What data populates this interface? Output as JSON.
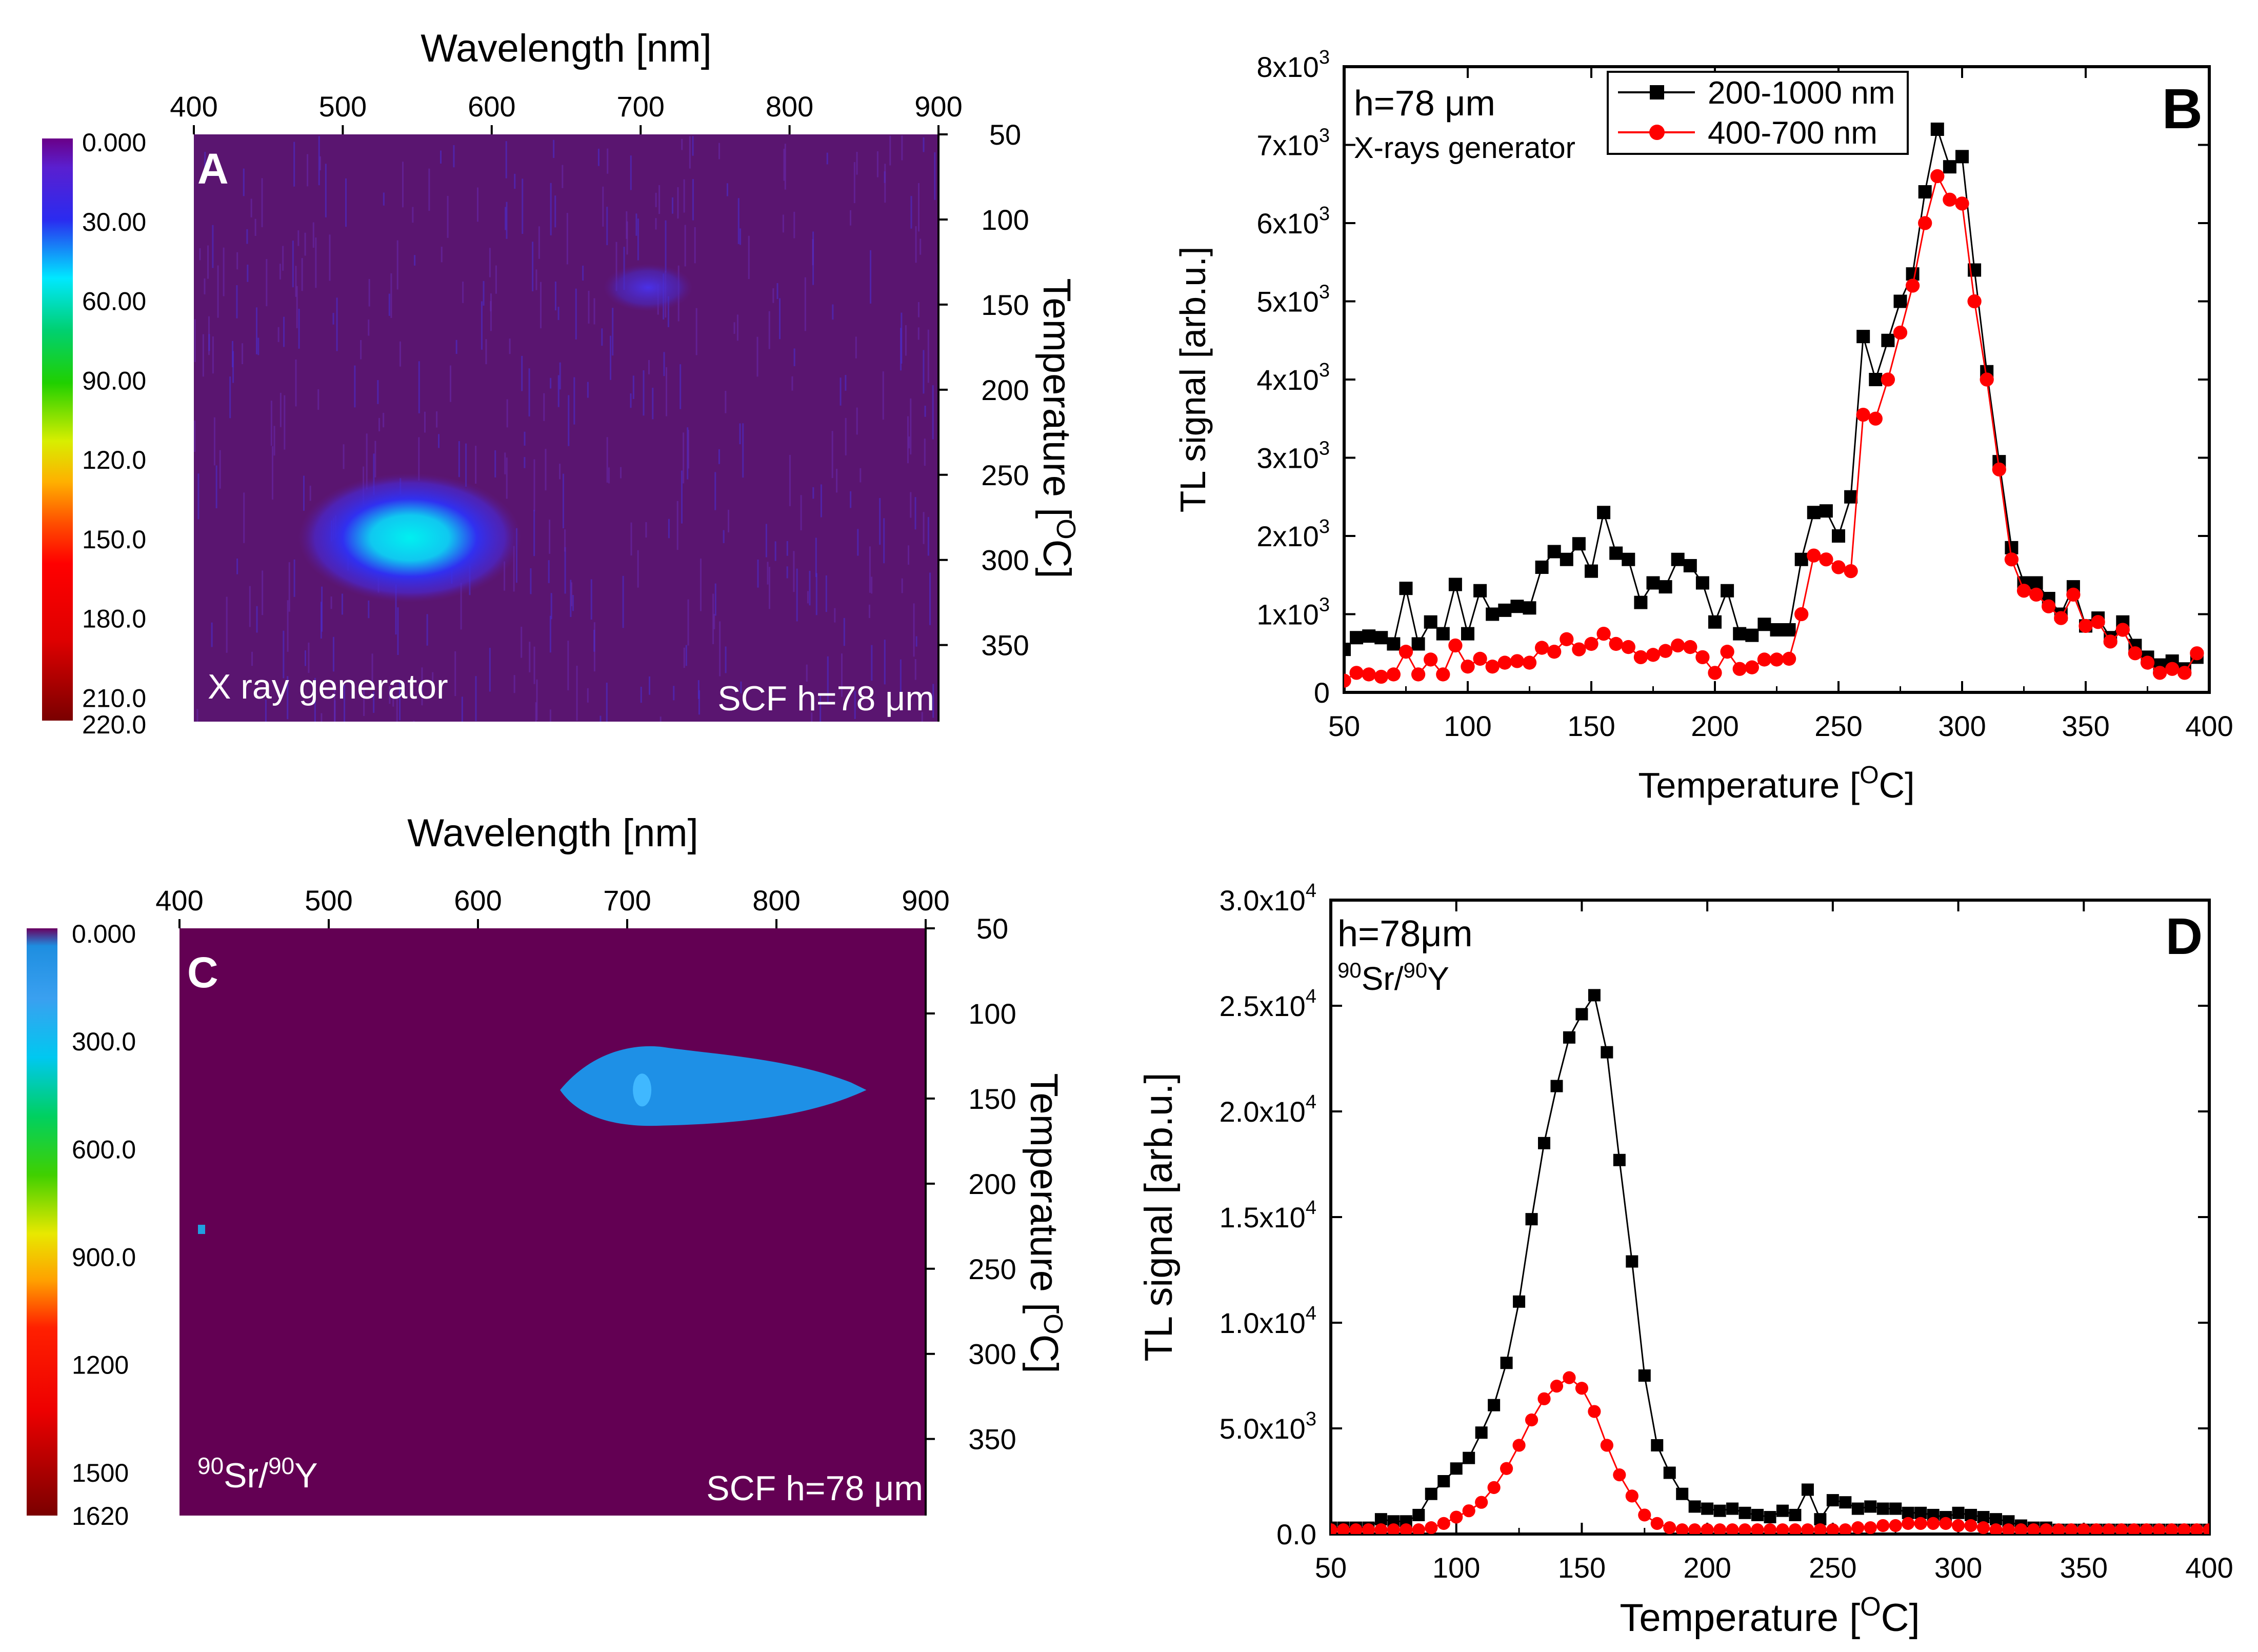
{
  "figure_title": "",
  "chart_data": [
    {
      "panel": "A",
      "type": "heatmap",
      "xlabel": "Wavelength [nm]",
      "xticks": [
        "400",
        "500",
        "600",
        "700",
        "800",
        "900"
      ],
      "xlim": [
        400,
        900
      ],
      "ylabel": "Temperature [",
      "ylabel_sup": "O",
      "ylabel_tail": "C]",
      "yticks": [
        "50",
        "100",
        "150",
        "200",
        "250",
        "300",
        "350"
      ],
      "ylim": [
        50,
        395
      ],
      "colorbar_labels": [
        "0.000",
        "30.00",
        "60.00",
        "90.00",
        "120.0",
        "150.0",
        "180.0",
        "210.0",
        "220.0"
      ],
      "colorbar_range": [
        0,
        220
      ],
      "source_text": "X ray generator",
      "sample_text": "SCF h=78 μm",
      "hotspots": [
        {
          "wavelength_nm": 545,
          "temperature_c": 287,
          "wl_spread": 75,
          "t_spread": 38,
          "peak": 55
        },
        {
          "wavelength_nm": 705,
          "temperature_c": 140,
          "wl_spread": 30,
          "t_spread": 14,
          "peak": 30
        }
      ]
    },
    {
      "panel": "B",
      "type": "line",
      "xlabel": "Temperature [",
      "xlabel_sup": "O",
      "xlabel_tail": "C]",
      "ylabel": "TL signal [arb.u.]",
      "xlim": [
        50,
        400
      ],
      "ylim": [
        0,
        8000
      ],
      "xticks": [
        "50",
        "100",
        "150",
        "200",
        "250",
        "300",
        "350",
        "400"
      ],
      "ytick_values": [
        0,
        1000,
        2000,
        3000,
        4000,
        5000,
        6000,
        7000,
        8000
      ],
      "ytick_mantissa": [
        "0",
        "1x10",
        "2x10",
        "3x10",
        "4x10",
        "5x10",
        "6x10",
        "7x10",
        "8x10"
      ],
      "ytick_exponent": [
        "",
        "3",
        "3",
        "3",
        "3",
        "3",
        "3",
        "3",
        "3"
      ],
      "annotation_1": "h=78 μm",
      "annotation_2": "X-rays generator",
      "x": [
        50,
        55,
        60,
        65,
        70,
        75,
        80,
        85,
        90,
        95,
        100,
        105,
        110,
        115,
        120,
        125,
        130,
        135,
        140,
        145,
        150,
        155,
        160,
        165,
        170,
        175,
        180,
        185,
        190,
        195,
        200,
        205,
        210,
        215,
        220,
        225,
        230,
        235,
        240,
        245,
        250,
        255,
        260,
        265,
        270,
        275,
        280,
        285,
        290,
        295,
        300,
        305,
        310,
        315,
        320,
        325,
        330,
        335,
        340,
        345,
        350,
        355,
        360,
        365,
        370,
        375,
        380,
        385,
        390,
        395
      ],
      "series": [
        {
          "name": "200-1000 nm",
          "color": "#000000",
          "marker": "square",
          "values": [
            550,
            700,
            720,
            700,
            620,
            1330,
            620,
            900,
            750,
            1380,
            750,
            1300,
            1000,
            1050,
            1100,
            1080,
            1600,
            1800,
            1700,
            1900,
            1550,
            2300,
            1780,
            1700,
            1150,
            1400,
            1350,
            1700,
            1620,
            1400,
            900,
            1300,
            750,
            730,
            870,
            800,
            800,
            1700,
            2300,
            2320,
            2000,
            2500,
            4550,
            4000,
            4500,
            5000,
            5350,
            6400,
            7200,
            6720,
            6850,
            5400,
            4100,
            2950,
            1850,
            1400,
            1400,
            1200,
            1000,
            1350,
            850,
            950,
            700,
            900,
            600,
            450,
            350,
            400,
            300,
            450
          ]
        },
        {
          "name": "400-700 nm",
          "color": "#ff0000",
          "marker": "circle",
          "values": [
            150,
            250,
            230,
            200,
            230,
            520,
            230,
            420,
            230,
            600,
            330,
            430,
            330,
            380,
            400,
            380,
            570,
            520,
            680,
            550,
            620,
            750,
            620,
            580,
            450,
            480,
            530,
            600,
            580,
            450,
            250,
            520,
            300,
            320,
            420,
            420,
            430,
            1000,
            1750,
            1700,
            1600,
            1550,
            3550,
            3500,
            4000,
            4600,
            5200,
            6000,
            6600,
            6300,
            6250,
            5000,
            4000,
            2850,
            1700,
            1300,
            1250,
            1100,
            950,
            1250,
            850,
            900,
            650,
            800,
            500,
            380,
            250,
            300,
            250,
            500
          ]
        }
      ],
      "panel_letter": "B"
    },
    {
      "panel": "C",
      "type": "heatmap",
      "xlabel": "Wavelength [nm]",
      "xticks": [
        "400",
        "500",
        "600",
        "700",
        "800",
        "900"
      ],
      "xlim": [
        400,
        900
      ],
      "ylabel": "Temperature [",
      "ylabel_sup": "O",
      "ylabel_tail": "C]",
      "yticks": [
        "50",
        "100",
        "150",
        "200",
        "250",
        "300",
        "350"
      ],
      "ylim": [
        50,
        395
      ],
      "colorbar_labels": [
        "0.000",
        "300.0",
        "600.0",
        "900.0",
        "1200",
        "1500",
        "1620"
      ],
      "colorbar_range": [
        0,
        1620
      ],
      "source_text_sup1": "90",
      "source_text_1": "Sr/",
      "source_text_sup2": "90",
      "source_text_2": "Y",
      "sample_text": "SCF h=78 μm",
      "hotspots": [
        {
          "wavelength_nm_from": 655,
          "wavelength_nm_to": 850,
          "temperature_c": 145,
          "t_spread": 22,
          "level": 330
        },
        {
          "wavelength_nm": 710,
          "temperature_c": 145,
          "level": 450
        }
      ]
    },
    {
      "panel": "D",
      "type": "line",
      "xlabel": "Temperature [",
      "xlabel_sup": "O",
      "xlabel_tail": "C]",
      "ylabel": "TL signal [arb.u.]",
      "xlim": [
        50,
        400
      ],
      "ylim": [
        0,
        30000
      ],
      "xticks": [
        "50",
        "100",
        "150",
        "200",
        "250",
        "300",
        "350",
        "400"
      ],
      "ytick_values": [
        0,
        5000,
        10000,
        15000,
        20000,
        25000,
        30000
      ],
      "ytick_mantissa": [
        "0.0",
        "5.0x10",
        "1.0x10",
        "1.5x10",
        "2.0x10",
        "2.5x10",
        "3.0x10"
      ],
      "ytick_exponent": [
        "",
        "3",
        "4",
        "4",
        "4",
        "4",
        "4"
      ],
      "annotation_1": "h=78μm",
      "annotation_2_sup1": "90",
      "annotation_2_a": "Sr/",
      "annotation_2_sup2": "90",
      "annotation_2_b": "Y",
      "x": [
        50,
        55,
        60,
        65,
        70,
        75,
        80,
        85,
        90,
        95,
        100,
        105,
        110,
        115,
        120,
        125,
        130,
        135,
        140,
        145,
        150,
        155,
        160,
        165,
        170,
        175,
        180,
        185,
        190,
        195,
        200,
        205,
        210,
        215,
        220,
        225,
        230,
        235,
        240,
        245,
        250,
        255,
        260,
        265,
        270,
        275,
        280,
        285,
        290,
        295,
        300,
        305,
        310,
        315,
        320,
        325,
        330,
        335,
        340,
        345,
        350,
        355,
        360,
        365,
        370,
        375,
        380,
        385,
        390,
        395,
        400
      ],
      "series": [
        {
          "name": "200-1000 nm",
          "color": "#000000",
          "marker": "square",
          "values": [
            300,
            300,
            300,
            300,
            700,
            600,
            600,
            900,
            1900,
            2500,
            3100,
            3600,
            4800,
            6100,
            8100,
            11000,
            14900,
            18500,
            21200,
            23500,
            24600,
            25500,
            22800,
            17700,
            12900,
            7500,
            4200,
            2900,
            1900,
            1300,
            1200,
            1100,
            1200,
            1000,
            900,
            800,
            1100,
            900,
            2100,
            700,
            1600,
            1500,
            1200,
            1300,
            1200,
            1200,
            1000,
            1000,
            900,
            800,
            1000,
            900,
            800,
            700,
            600,
            400,
            300,
            300,
            200,
            200,
            200,
            200,
            200,
            200,
            200,
            200,
            200,
            200,
            200,
            200,
            200
          ]
        },
        {
          "name": "400-700 nm",
          "color": "#ff0000",
          "marker": "circle",
          "values": [
            200,
            200,
            200,
            200,
            200,
            200,
            200,
            200,
            300,
            500,
            800,
            1100,
            1500,
            2200,
            3100,
            4200,
            5400,
            6400,
            7000,
            7400,
            6900,
            5800,
            4200,
            2800,
            1800,
            900,
            500,
            300,
            200,
            200,
            200,
            200,
            200,
            200,
            200,
            200,
            200,
            200,
            200,
            200,
            200,
            200,
            300,
            300,
            400,
            400,
            500,
            500,
            500,
            500,
            400,
            400,
            300,
            200,
            200,
            200,
            200,
            200,
            200,
            200,
            200,
            200,
            200,
            200,
            200,
            200,
            200,
            200,
            200,
            200,
            200
          ]
        }
      ],
      "panel_letter": "D"
    }
  ]
}
